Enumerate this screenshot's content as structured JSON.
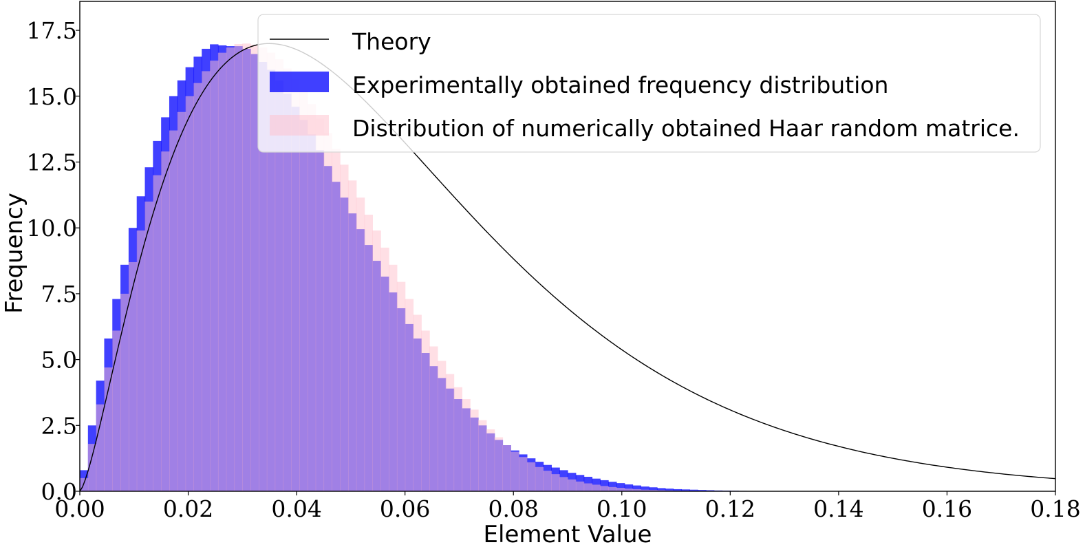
{
  "chart_data": {
    "type": "bar",
    "xlabel": "Element Value",
    "ylabel": "Frequency",
    "xlim": [
      0,
      0.18
    ],
    "ylim": [
      0,
      17.5
    ],
    "grid": false,
    "legend_position": "top-right",
    "x_ticks": [
      0.0,
      0.02,
      0.04,
      0.06,
      0.08,
      0.1,
      0.12,
      0.14,
      0.16,
      0.18
    ],
    "x_tick_labels": [
      "0.00",
      "0.02",
      "0.04",
      "0.06",
      "0.08",
      "0.10",
      "0.12",
      "0.14",
      "0.16",
      "0.18"
    ],
    "y_ticks": [
      0,
      2.5,
      5,
      7.5,
      10,
      12.5,
      15,
      17.5
    ],
    "y_tick_labels": [
      "0.0",
      "2.5",
      "5.0",
      "7.5",
      "10.0",
      "12.5",
      "15.0",
      "17.5"
    ],
    "bin_width": 0.0015,
    "series": [
      {
        "name": "Theory",
        "kind": "line",
        "color": "#000000",
        "shape_k": 2.42,
        "scale": 0.0246
      },
      {
        "name": "Experimentally obtained frequency distribution",
        "kind": "histogram",
        "color": "#0000ff",
        "opacity": 0.75,
        "values": [
          0.8,
          2.5,
          4.2,
          5.8,
          7.3,
          8.6,
          10.0,
          11.2,
          12.3,
          13.3,
          14.2,
          15.0,
          15.6,
          16.1,
          16.5,
          16.8,
          16.97,
          16.93,
          16.9,
          16.9,
          16.8,
          16.6,
          16.3,
          16.0,
          15.6,
          15.1,
          14.6,
          14.1,
          13.55,
          12.95,
          12.35,
          11.75,
          11.15,
          10.55,
          9.95,
          9.35,
          8.75,
          8.15,
          7.55,
          6.95,
          6.35,
          5.8,
          5.25,
          4.75,
          4.3,
          3.9,
          3.5,
          3.15,
          2.8,
          2.5,
          2.2,
          1.95,
          1.75,
          1.55,
          1.4,
          1.25,
          1.12,
          1.0,
          0.9,
          0.8,
          0.7,
          0.62,
          0.55,
          0.48,
          0.42,
          0.36,
          0.31,
          0.26,
          0.22,
          0.18,
          0.15,
          0.12,
          0.1,
          0.08,
          0.07,
          0.06,
          0.05,
          0.04,
          0.03,
          0.025,
          0.02,
          0.015,
          0.01,
          0.008,
          0.006,
          0.005,
          0.004,
          0.003,
          0.002,
          0.002,
          0.001,
          0.001,
          0.001,
          0.001,
          0.0,
          0.0,
          0.0,
          0.0,
          0.0,
          0.0,
          0.0,
          0.0,
          0.0,
          0.0,
          0.0,
          0.0,
          0.0,
          0.0,
          0.0,
          0.0
        ]
      },
      {
        "name": "Distribution of numerically obtained Haar random matrice.",
        "kind": "histogram",
        "color": "#ffc0cb",
        "opacity": 0.5,
        "values": [
          0.5,
          1.8,
          3.3,
          4.7,
          6.1,
          7.5,
          8.7,
          9.9,
          11.0,
          12.0,
          12.9,
          13.7,
          14.4,
          15.0,
          15.5,
          15.95,
          16.35,
          16.65,
          16.85,
          16.98,
          17.0,
          16.95,
          16.85,
          16.65,
          16.4,
          16.05,
          15.65,
          15.2,
          14.7,
          14.15,
          13.6,
          13.0,
          12.4,
          11.8,
          11.15,
          10.5,
          9.9,
          9.25,
          8.6,
          7.95,
          7.3,
          6.7,
          6.1,
          5.5,
          4.95,
          4.45,
          3.95,
          3.5,
          3.1,
          2.7,
          2.35,
          2.05,
          1.75,
          1.5,
          1.3,
          1.1,
          0.92,
          0.78,
          0.65,
          0.54,
          0.45,
          0.37,
          0.3,
          0.25,
          0.2,
          0.16,
          0.13,
          0.1,
          0.08,
          0.06,
          0.05,
          0.04,
          0.03,
          0.02,
          0.016,
          0.012,
          0.009,
          0.007,
          0.005,
          0.004,
          0.003,
          0.002,
          0.001,
          0.001,
          0.001,
          0.0,
          0.0,
          0.0,
          0.0,
          0.0,
          0.0,
          0.0,
          0.0,
          0.0,
          0.0,
          0.0,
          0.0,
          0.0,
          0.0,
          0.0,
          0.0,
          0.0,
          0.0,
          0.0,
          0.0,
          0.0,
          0.0,
          0.0,
          0.0,
          0.0
        ]
      }
    ]
  }
}
